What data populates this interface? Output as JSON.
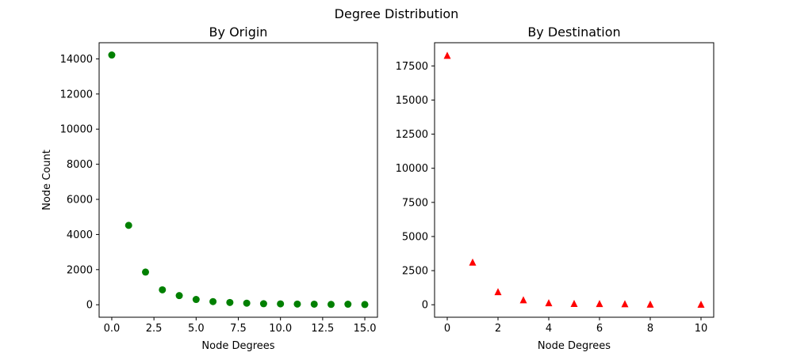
{
  "figure": {
    "title": "Degree Distribution"
  },
  "colors": {
    "left": "#008000",
    "right": "#ff0000"
  },
  "chart_data": [
    {
      "type": "scatter",
      "title": "By Origin",
      "xlabel": "Node Degrees",
      "ylabel": "Node Count",
      "marker": "circle",
      "xlim": [
        -0.75,
        15.75
      ],
      "ylim": [
        -711,
        14920
      ],
      "xticks": [
        0.0,
        2.5,
        5.0,
        7.5,
        10.0,
        12.5,
        15.0
      ],
      "xtick_labels": [
        "0.0",
        "2.5",
        "5.0",
        "7.5",
        "10.0",
        "12.5",
        "15.0"
      ],
      "yticks": [
        0,
        2000,
        4000,
        6000,
        8000,
        10000,
        12000,
        14000
      ],
      "ytick_labels": [
        "0",
        "2000",
        "4000",
        "6000",
        "8000",
        "10000",
        "12000",
        "14000"
      ],
      "x": [
        0,
        1,
        2,
        3,
        4,
        5,
        6,
        7,
        8,
        9,
        10,
        11,
        12,
        13,
        14,
        15
      ],
      "y": [
        14220,
        4520,
        1860,
        850,
        520,
        300,
        180,
        130,
        90,
        60,
        50,
        40,
        35,
        20,
        30,
        15
      ]
    },
    {
      "type": "scatter",
      "title": "By Destination",
      "xlabel": "Node Degrees",
      "ylabel": "",
      "marker": "triangle",
      "xlim": [
        -0.5,
        10.5
      ],
      "ylim": [
        -915,
        19200
      ],
      "xticks": [
        0,
        2,
        4,
        6,
        8,
        10
      ],
      "xtick_labels": [
        "0",
        "2",
        "4",
        "6",
        "8",
        "10"
      ],
      "yticks": [
        0,
        2500,
        5000,
        7500,
        10000,
        12500,
        15000,
        17500
      ],
      "ytick_labels": [
        "0",
        "2500",
        "5000",
        "7500",
        "10000",
        "12500",
        "15000",
        "17500"
      ],
      "x": [
        0,
        1,
        2,
        3,
        4,
        5,
        6,
        7,
        8,
        10
      ],
      "y": [
        18250,
        3100,
        930,
        340,
        120,
        70,
        60,
        50,
        20,
        10
      ]
    }
  ]
}
